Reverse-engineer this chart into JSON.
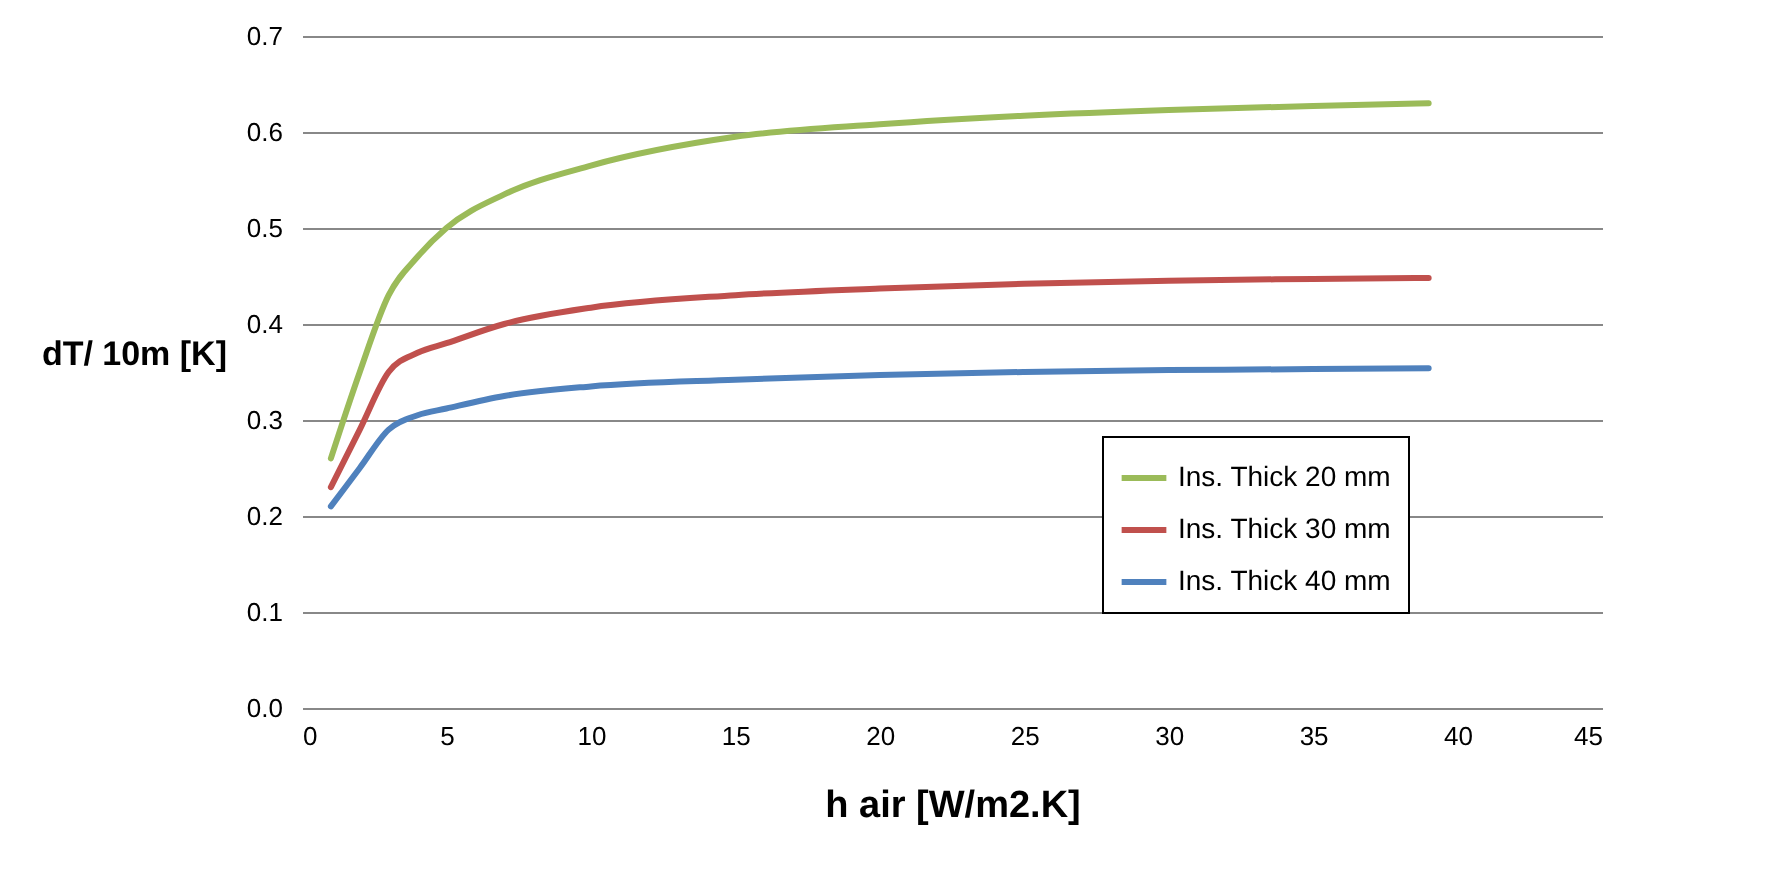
{
  "chart_data": {
    "type": "line",
    "xlabel": "h air [W/m2.K]",
    "ylabel": "dT/ 10m [K]",
    "x": [
      1,
      2,
      3,
      4,
      5,
      7,
      10,
      15,
      20,
      25,
      30,
      35,
      39
    ],
    "series": [
      {
        "name": "Ins. Thick 20 mm",
        "color": "#9bbb59",
        "values": [
          0.26,
          0.35,
          0.43,
          0.47,
          0.5,
          0.535,
          0.565,
          0.595,
          0.608,
          0.617,
          0.623,
          0.627,
          0.63
        ]
      },
      {
        "name": "Ins. Thick 30 mm",
        "color": "#c0504d",
        "values": [
          0.23,
          0.29,
          0.35,
          0.37,
          0.38,
          0.4,
          0.417,
          0.43,
          0.437,
          0.442,
          0.445,
          0.447,
          0.448
        ]
      },
      {
        "name": "Ins. Thick 40 mm",
        "color": "#4f81bd",
        "values": [
          0.21,
          0.25,
          0.29,
          0.305,
          0.312,
          0.325,
          0.335,
          0.342,
          0.347,
          0.35,
          0.352,
          0.353,
          0.354
        ]
      }
    ],
    "xlim": [
      0,
      45
    ],
    "xticks": [
      0,
      5,
      10,
      15,
      20,
      25,
      30,
      35,
      40,
      45
    ],
    "ylim": [
      0,
      0.7
    ],
    "yticks": [
      {
        "value": 0,
        "label": "0.0"
      },
      0.1,
      0.2,
      0.3,
      0.4,
      0.5,
      0.6,
      0.7
    ],
    "grid": "y",
    "legend": "right",
    "marker": "none",
    "line_style": "solid"
  }
}
